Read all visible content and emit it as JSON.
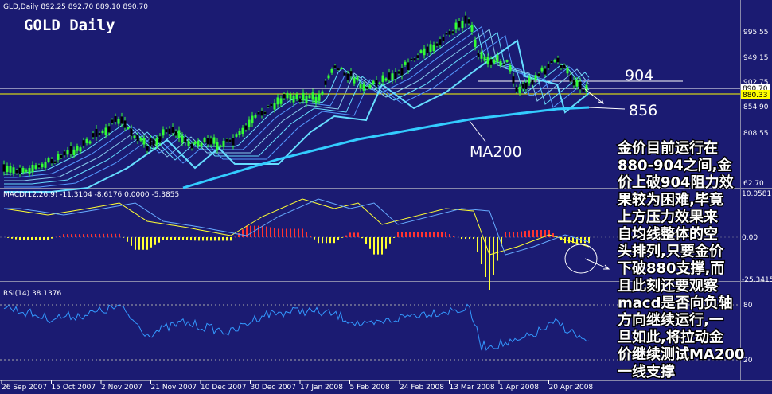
{
  "header": {
    "symbol_line": "GLD,Daily  892.25 892.70 889.10 890.70",
    "title": "GOLD Daily"
  },
  "price_panel": {
    "axis_labels": [
      "995.55",
      "949.15",
      "902.75",
      "854.90",
      "808.55",
      "62.70"
    ],
    "price_boxes": [
      "890.70",
      "880.33"
    ],
    "level_labels": [
      "904",
      "856"
    ],
    "ma_label": "MA200"
  },
  "macd_panel": {
    "caption": "MACD(12,26,9) -11.3104 -8.6176 0.0000 -5.3855",
    "axis_labels": [
      "10.0581",
      "0.00",
      "-25.3415"
    ]
  },
  "rsi_panel": {
    "caption": "RSI(14) 38.1376",
    "axis_labels": [
      "80",
      "20"
    ]
  },
  "dates": [
    "26 Sep 2007",
    "15 Oct 2007",
    "2 Nov 2007",
    "21 Nov 2007",
    "10 Dec 2007",
    "30 Dec 2007",
    "17 Jan 2008",
    "5 Feb 2008",
    "24 Feb 2008",
    "13 Mar 2008",
    "1 Apr 2008",
    "20 Apr 2008"
  ],
  "annotation": [
    "金价目前运行在",
    "880-904之间,金",
    "价上破904阻力效",
    "果较为困难,毕竟",
    "上方压力效果来",
    "自均线整体的空",
    "头排列,只要金价",
    "下破880支撑,而",
    "且此刻还要观察",
    "macd是否向负轴",
    "方向继续运行,一",
    "旦如此,将拉动金",
    "价继续测试MA200",
    "一线支撑"
  ]
}
